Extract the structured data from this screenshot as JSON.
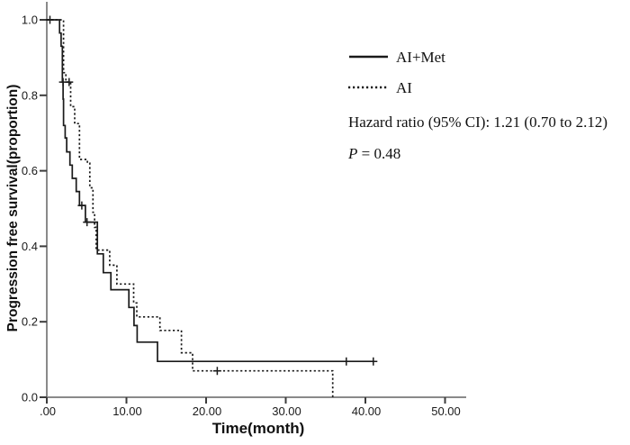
{
  "figure": {
    "background": "#ffffff",
    "y_axis_title": "Progression free survival(proportion)",
    "x_axis_title": "Time(month)",
    "legend": {
      "series1_label": "AI+Met",
      "series2_label": "AI",
      "hazard_ratio_text": "Hazard ratio (95% CI): 1.21 (0.70 to 2.12)",
      "p_label": "P",
      "p_value_text": " = 0.48"
    },
    "colors": {
      "curve": "#1a1a1a",
      "axis_line": "#8a8a8a",
      "tick": "#3c3c3c",
      "text": "#111111",
      "background": "#ffffff"
    }
  },
  "chart_data": {
    "type": "line",
    "subtype": "kaplan-meier-step",
    "title": "",
    "xlabel": "Time(month)",
    "ylabel": "Progression free survival(proportion)",
    "xlim": [
      0,
      52.5
    ],
    "ylim": [
      0,
      1.0
    ],
    "grid": false,
    "legend_position": "upper-right",
    "x_ticks": {
      "values": [
        0,
        10,
        20,
        30,
        40,
        50
      ],
      "labels": [
        ".00",
        "10.00",
        "20.00",
        "30.00",
        "40.00",
        "50.00"
      ]
    },
    "y_ticks": {
      "values": [
        0.0,
        0.2,
        0.4,
        0.6,
        0.8,
        1.0
      ],
      "labels": [
        "0.0",
        "0.2",
        "0.4",
        "0.6",
        "0.8",
        "1.0"
      ]
    },
    "annotations": [
      "Hazard ratio (95% CI): 1.21 (0.70 to 2.12)",
      "P = 0.48"
    ],
    "series": [
      {
        "name": "AI+Met",
        "style": "solid",
        "color": "#1a1a1a",
        "end_time": 41.1,
        "steps": [
          [
            0,
            1.0
          ],
          [
            1.6,
            0.965
          ],
          [
            1.8,
            0.93
          ],
          [
            1.95,
            0.835
          ],
          [
            2.05,
            0.79
          ],
          [
            2.1,
            0.72
          ],
          [
            2.3,
            0.687
          ],
          [
            2.5,
            0.65
          ],
          [
            2.9,
            0.615
          ],
          [
            3.2,
            0.58
          ],
          [
            3.7,
            0.545
          ],
          [
            4.1,
            0.508
          ],
          [
            4.85,
            0.464
          ],
          [
            6.35,
            0.38
          ],
          [
            7.1,
            0.33
          ],
          [
            8.05,
            0.285
          ],
          [
            10.3,
            0.238
          ],
          [
            10.95,
            0.19
          ],
          [
            11.35,
            0.146
          ],
          [
            13.9,
            0.095
          ]
        ],
        "censor_marks": [
          [
            0.4,
            1.0
          ],
          [
            2.05,
            0.835
          ],
          [
            4.4,
            0.508
          ],
          [
            5.05,
            0.464
          ],
          [
            37.6,
            0.095
          ],
          [
            41.0,
            0.095
          ]
        ]
      },
      {
        "name": "AI",
        "style": "dotted",
        "color": "#1a1a1a",
        "end_time": 36.1,
        "steps": [
          [
            0,
            1.0
          ],
          [
            2.1,
            0.86
          ],
          [
            2.4,
            0.835
          ],
          [
            3.0,
            0.77
          ],
          [
            3.5,
            0.725
          ],
          [
            4.1,
            0.63
          ],
          [
            5.1,
            0.62
          ],
          [
            5.4,
            0.555
          ],
          [
            5.8,
            0.49
          ],
          [
            6.0,
            0.45
          ],
          [
            6.2,
            0.39
          ],
          [
            7.9,
            0.35
          ],
          [
            8.8,
            0.3
          ],
          [
            10.9,
            0.25
          ],
          [
            11.3,
            0.213
          ],
          [
            14.2,
            0.177
          ],
          [
            16.9,
            0.118
          ],
          [
            18.3,
            0.07
          ],
          [
            35.9,
            0.0
          ]
        ],
        "censor_marks": [
          [
            2.8,
            0.835
          ],
          [
            21.4,
            0.07
          ]
        ]
      }
    ]
  }
}
